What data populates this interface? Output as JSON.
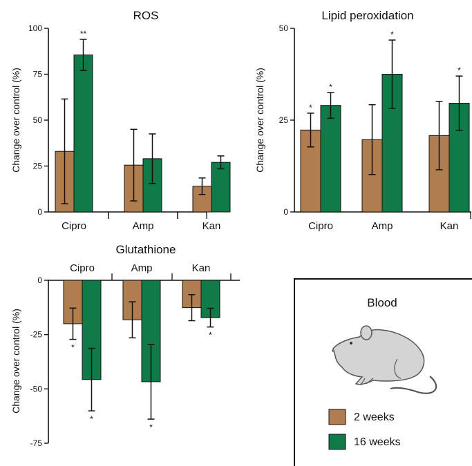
{
  "colors": {
    "weeks2": "#b07d4e",
    "weeks16": "#107b48",
    "axis": "#111111",
    "mouse_fill": "#d4d4d4",
    "mouse_stroke": "#555555"
  },
  "ylabel": "Change over control (%)",
  "legend": {
    "panel_title": "Blood",
    "items": [
      "2 weeks",
      "16 weeks"
    ],
    "icon": "mouse-icon"
  },
  "chart_data": [
    {
      "type": "bar",
      "title": "ROS",
      "ylabel": "Change over control (%)",
      "ylim": [
        0,
        100
      ],
      "yticks": [
        0,
        25,
        50,
        75,
        100
      ],
      "categories": [
        "Cipro",
        "Amp",
        "Kan"
      ],
      "series": [
        {
          "name": "2 weeks",
          "values": [
            33,
            25.5,
            14
          ],
          "error": [
            28.5,
            19.5,
            4.5
          ],
          "stars": [
            "",
            "",
            ""
          ]
        },
        {
          "name": "16 weeks",
          "values": [
            85.5,
            29,
            27
          ],
          "error": [
            8.5,
            13.5,
            3.5
          ],
          "stars": [
            "**",
            "",
            ""
          ]
        }
      ]
    },
    {
      "type": "bar",
      "title": "Lipid peroxidation",
      "ylabel": "Change over control (%)",
      "ylim": [
        0,
        50
      ],
      "yticks": [
        0,
        25,
        50
      ],
      "categories": [
        "Cipro",
        "Amp",
        "Kan"
      ],
      "series": [
        {
          "name": "2 weeks",
          "values": [
            22.3,
            19.7,
            20.8
          ],
          "error": [
            4.6,
            9.5,
            9.3
          ],
          "stars": [
            "*",
            "",
            ""
          ]
        },
        {
          "name": "16 weeks",
          "values": [
            29,
            37.5,
            29.6
          ],
          "error": [
            3.5,
            9.3,
            7.4
          ],
          "stars": [
            "*",
            "*",
            "*"
          ]
        }
      ]
    },
    {
      "type": "bar",
      "title": "Glutathione",
      "ylabel": "Change over control (%)",
      "ylim": [
        -75,
        0
      ],
      "yticks": [
        0,
        -25,
        -50,
        -75
      ],
      "categories": [
        "Cipro",
        "Amp",
        "Kan"
      ],
      "series": [
        {
          "name": "2 weeks",
          "values": [
            -20,
            -18.2,
            -12.6
          ],
          "error": [
            7.2,
            8.3,
            6
          ],
          "stars": [
            "*",
            "",
            ""
          ]
        },
        {
          "name": "16 weeks",
          "values": [
            -45.7,
            -46.7,
            -17.2
          ],
          "error": [
            14.4,
            17.2,
            4.3
          ],
          "stars": [
            "*",
            "*",
            "*"
          ]
        }
      ]
    }
  ]
}
